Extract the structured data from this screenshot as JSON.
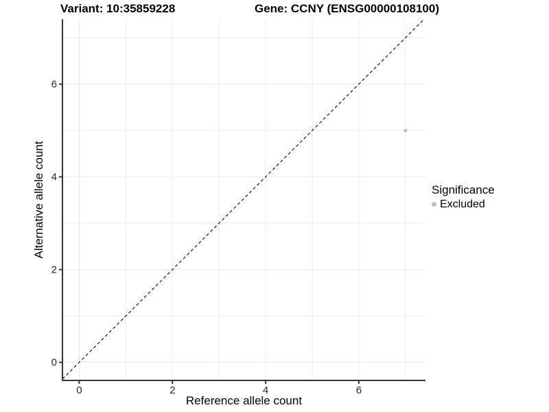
{
  "chart_data": {
    "type": "scatter",
    "title_left": "Variant: 10:35859228",
    "title_right": "Gene: CCNY (ENSG00000108100)",
    "xlabel": "Reference allele count",
    "ylabel": "Alternative allele count",
    "xlim": [
      -0.36,
      7.43
    ],
    "ylim": [
      -0.39,
      7.4
    ],
    "x_ticks": [
      0,
      2,
      4,
      6
    ],
    "y_ticks": [
      0,
      2,
      4,
      6
    ],
    "grid_interval": 1,
    "grid_on": true,
    "identity_line": {
      "slope": 1,
      "intercept": 0,
      "style": "dashed",
      "color": "#000000"
    },
    "points": [
      {
        "x": 7,
        "y": 5,
        "series": "Excluded",
        "color": "#bdbdbd"
      }
    ],
    "legend": {
      "title": "Significance",
      "position": "right",
      "items": [
        {
          "label": "Excluded",
          "color": "#bdbdbd"
        }
      ]
    },
    "colors": {
      "grid": "#ebebeb",
      "axis": "#333333",
      "tick_text": "#262626",
      "title_text": "#000000"
    }
  }
}
